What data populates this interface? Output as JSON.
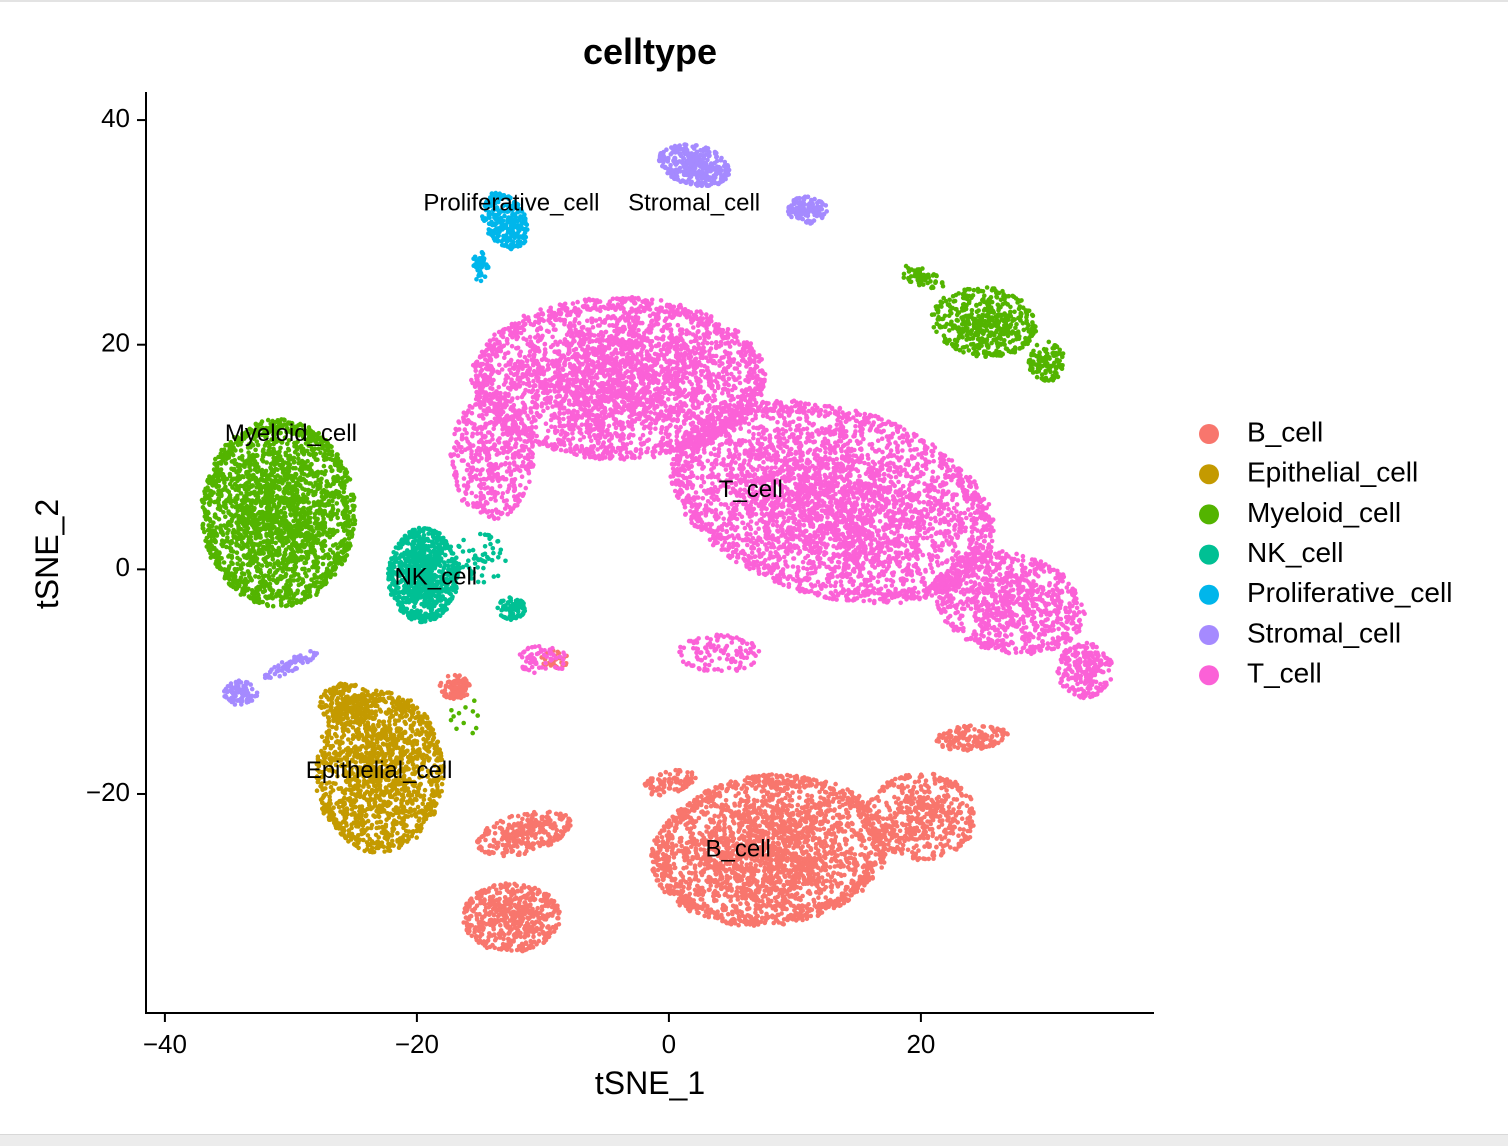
{
  "chart_data": {
    "type": "scatter",
    "title": "celltype",
    "xlabel": "tSNE_1",
    "ylabel": "tSNE_2",
    "xlim": [
      -41.5,
      38.5
    ],
    "ylim": [
      -39.5,
      42.5
    ],
    "xticks": [
      -40,
      -20,
      0,
      20
    ],
    "yticks": [
      40,
      20,
      0,
      -20
    ],
    "xtick_labels": [
      "−40",
      "−20",
      "0",
      "20"
    ],
    "ytick_labels": [
      "40",
      "20",
      "0",
      "−20"
    ],
    "grid": false,
    "legend_position": "right",
    "series": [
      {
        "name": "B_cell",
        "color": "#F8766D",
        "label_at": [
          5.5,
          -25
        ],
        "clusters": [
          {
            "cx": 8,
            "cy": -25,
            "sx": 8.5,
            "sy": 6.0,
            "rot": 0.15,
            "n": 2600
          },
          {
            "cx": 20,
            "cy": -22,
            "sx": 4.0,
            "sy": 3.5,
            "rot": 0.0,
            "n": 500
          },
          {
            "cx": 24,
            "cy": -15,
            "sx": 2.6,
            "sy": 1.0,
            "rot": 0.1,
            "n": 150
          },
          {
            "cx": 0,
            "cy": -19,
            "sx": 2.0,
            "sy": 0.9,
            "rot": 0.3,
            "n": 90
          },
          {
            "cx": -11.5,
            "cy": -23.5,
            "sx": 3.5,
            "sy": 1.6,
            "rot": 0.3,
            "n": 300
          },
          {
            "cx": -12.5,
            "cy": -31,
            "sx": 3.5,
            "sy": 2.8,
            "rot": 0.0,
            "n": 550
          },
          {
            "cx": -17,
            "cy": -10.5,
            "sx": 1.1,
            "sy": 1.0,
            "rot": 0.0,
            "n": 80
          },
          {
            "cx": -9,
            "cy": -8,
            "sx": 1.0,
            "sy": 0.7,
            "rot": 0.0,
            "n": 30
          }
        ]
      },
      {
        "name": "Epithelial_cell",
        "color": "#C49A00",
        "label_at": [
          -23,
          -18
        ],
        "clusters": [
          {
            "cx": -23,
            "cy": -18,
            "sx": 4.6,
            "sy": 6.5,
            "rot": 0.0,
            "n": 1500
          },
          {
            "cx": -25.5,
            "cy": -12,
            "sx": 2.0,
            "sy": 1.7,
            "rot": 0.0,
            "n": 220
          }
        ]
      },
      {
        "name": "Myeloid_cell",
        "color": "#53B400",
        "label_at": [
          -30,
          12
        ],
        "clusters": [
          {
            "cx": -31,
            "cy": 5,
            "sx": 5.5,
            "sy": 7.5,
            "rot": 0.0,
            "n": 2300
          },
          {
            "cx": 25,
            "cy": 22,
            "sx": 3.8,
            "sy": 2.8,
            "rot": -0.2,
            "n": 500
          },
          {
            "cx": 30,
            "cy": 18.5,
            "sx": 1.3,
            "sy": 1.6,
            "rot": 0.0,
            "n": 120
          },
          {
            "cx": 20,
            "cy": 26,
            "sx": 1.8,
            "sy": 0.7,
            "rot": -0.4,
            "n": 60
          },
          {
            "cx": -16,
            "cy": -13,
            "sx": 1.2,
            "sy": 1.5,
            "rot": 0.0,
            "n": 12
          }
        ]
      },
      {
        "name": "NK_cell",
        "color": "#00C094",
        "label_at": [
          -18.5,
          -0.8
        ],
        "clusters": [
          {
            "cx": -19.5,
            "cy": -0.5,
            "sx": 2.5,
            "sy": 3.8,
            "rot": 0.0,
            "n": 850
          },
          {
            "cx": -12.5,
            "cy": -3.5,
            "sx": 1.0,
            "sy": 0.9,
            "rot": 0.0,
            "n": 80
          },
          {
            "cx": -15,
            "cy": 1,
            "sx": 2.0,
            "sy": 2.0,
            "rot": 0.0,
            "n": 60
          }
        ]
      },
      {
        "name": "Proliferative_cell",
        "color": "#00B6EB",
        "label_at": [
          -12.5,
          32.5
        ],
        "clusters": [
          {
            "cx": -13,
            "cy": 31,
            "sx": 1.5,
            "sy": 2.4,
            "rot": 0.4,
            "n": 260
          },
          {
            "cx": -15,
            "cy": 27,
            "sx": 0.6,
            "sy": 1.2,
            "rot": 0.0,
            "n": 50
          }
        ]
      },
      {
        "name": "Stromal_cell",
        "color": "#A58AFF",
        "label_at": [
          2,
          32.5
        ],
        "clusters": [
          {
            "cx": 2,
            "cy": 36,
            "sx": 2.6,
            "sy": 1.6,
            "rot": -0.3,
            "n": 360
          },
          {
            "cx": 11,
            "cy": 32,
            "sx": 1.4,
            "sy": 1.1,
            "rot": 0.0,
            "n": 130
          },
          {
            "cx": -34,
            "cy": -11,
            "sx": 1.2,
            "sy": 1.0,
            "rot": 0.0,
            "n": 90
          },
          {
            "cx": -30,
            "cy": -8.5,
            "sx": 2.2,
            "sy": 0.5,
            "rot": 0.5,
            "n": 70
          }
        ]
      },
      {
        "name": "T_cell",
        "color": "#FB61D7",
        "label_at": [
          6.5,
          7
        ],
        "clusters": [
          {
            "cx": -4,
            "cy": 17,
            "sx": 10.5,
            "sy": 6.5,
            "rot": 0.0,
            "n": 3200
          },
          {
            "cx": 13,
            "cy": 6,
            "sx": 12.0,
            "sy": 7.5,
            "rot": -0.35,
            "n": 3800
          },
          {
            "cx": 27,
            "cy": -3,
            "sx": 5.5,
            "sy": 4.0,
            "rot": -0.3,
            "n": 900
          },
          {
            "cx": 33,
            "cy": -9,
            "sx": 2.0,
            "sy": 2.2,
            "rot": 0.0,
            "n": 250
          },
          {
            "cx": -14,
            "cy": 10,
            "sx": 3.0,
            "sy": 5.0,
            "rot": 0.0,
            "n": 500
          },
          {
            "cx": -10,
            "cy": -8,
            "sx": 1.8,
            "sy": 1.2,
            "rot": 0.0,
            "n": 70
          },
          {
            "cx": 4,
            "cy": -7.5,
            "sx": 3.0,
            "sy": 1.5,
            "rot": 0.0,
            "n": 120
          }
        ]
      }
    ],
    "cluster_labels": [
      {
        "text": "Proliferative_cell",
        "x": -12.5,
        "y": 32.5
      },
      {
        "text": "Stromal_cell",
        "x": 2,
        "y": 32.5
      },
      {
        "text": "Myeloid_cell",
        "x": -30,
        "y": 12
      },
      {
        "text": "T_cell",
        "x": 6.5,
        "y": 7
      },
      {
        "text": "NK_cell",
        "x": -18.5,
        "y": -0.8
      },
      {
        "text": "Epithelial_cell",
        "x": -23,
        "y": -18
      },
      {
        "text": "B_cell",
        "x": 5.5,
        "y": -25
      }
    ]
  }
}
